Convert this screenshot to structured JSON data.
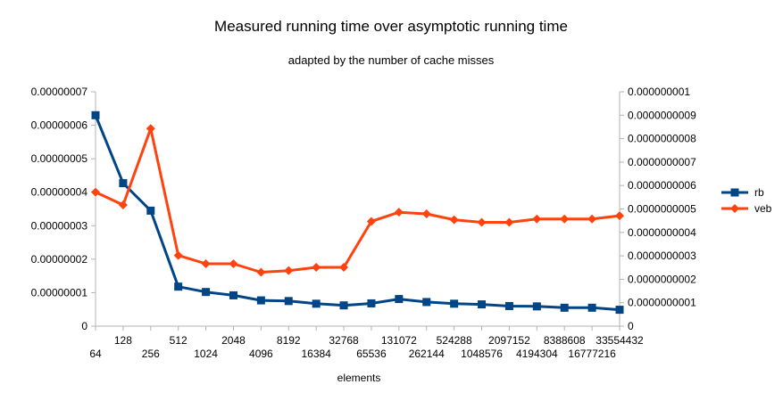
{
  "chart_data": {
    "type": "line",
    "title": "Measured running time over asymptotic running time",
    "subtitle": "adapted by the number of cache misses",
    "xlabel": "elements",
    "categories": [
      "64",
      "128",
      "256",
      "512",
      "1024",
      "2048",
      "4096",
      "8192",
      "16384",
      "32768",
      "65536",
      "131072",
      "262144",
      "524288",
      "1048576",
      "2097152",
      "4194304",
      "8388608",
      "16777216",
      "33554432"
    ],
    "y_left": {
      "range": [
        0,
        7e-08
      ],
      "ticks": [
        "0",
        "0.00000001",
        "0.00000002",
        "0.00000003",
        "0.00000004",
        "0.00000005",
        "0.00000006",
        "0.00000007"
      ]
    },
    "y_right": {
      "range": [
        0,
        1e-09
      ],
      "ticks": [
        "0",
        "0.0000000001",
        "0.0000000002",
        "0.0000000003",
        "0.0000000004",
        "0.0000000005",
        "0.0000000006",
        "0.0000000007",
        "0.0000000008",
        "0.0000000009",
        "0.000000001"
      ]
    },
    "series": [
      {
        "name": "rb",
        "axis": "left",
        "color": "#004586",
        "marker": "square",
        "values": [
          6.3e-08,
          4.27e-08,
          3.45e-08,
          1.18e-08,
          1.02e-08,
          9.2e-09,
          7.7e-09,
          7.5e-09,
          6.7e-09,
          6.2e-09,
          6.8e-09,
          8.1e-09,
          7.2e-09,
          6.7e-09,
          6.5e-09,
          6e-09,
          5.9e-09,
          5.5e-09,
          5.5e-09,
          4.9e-09
        ]
      },
      {
        "name": "veb",
        "axis": "right",
        "color": "#ff420e",
        "marker": "diamond",
        "values": [
          5.72e-10,
          5.17e-10,
          8.43e-10,
          3.02e-10,
          2.66e-10,
          2.66e-10,
          2.3e-10,
          2.37e-10,
          2.51e-10,
          2.51e-10,
          4.47e-10,
          4.86e-10,
          4.79e-10,
          4.54e-10,
          4.43e-10,
          4.43e-10,
          4.57e-10,
          4.57e-10,
          4.57e-10,
          4.71e-10
        ]
      }
    ],
    "grid": false,
    "legend_position": "right"
  }
}
